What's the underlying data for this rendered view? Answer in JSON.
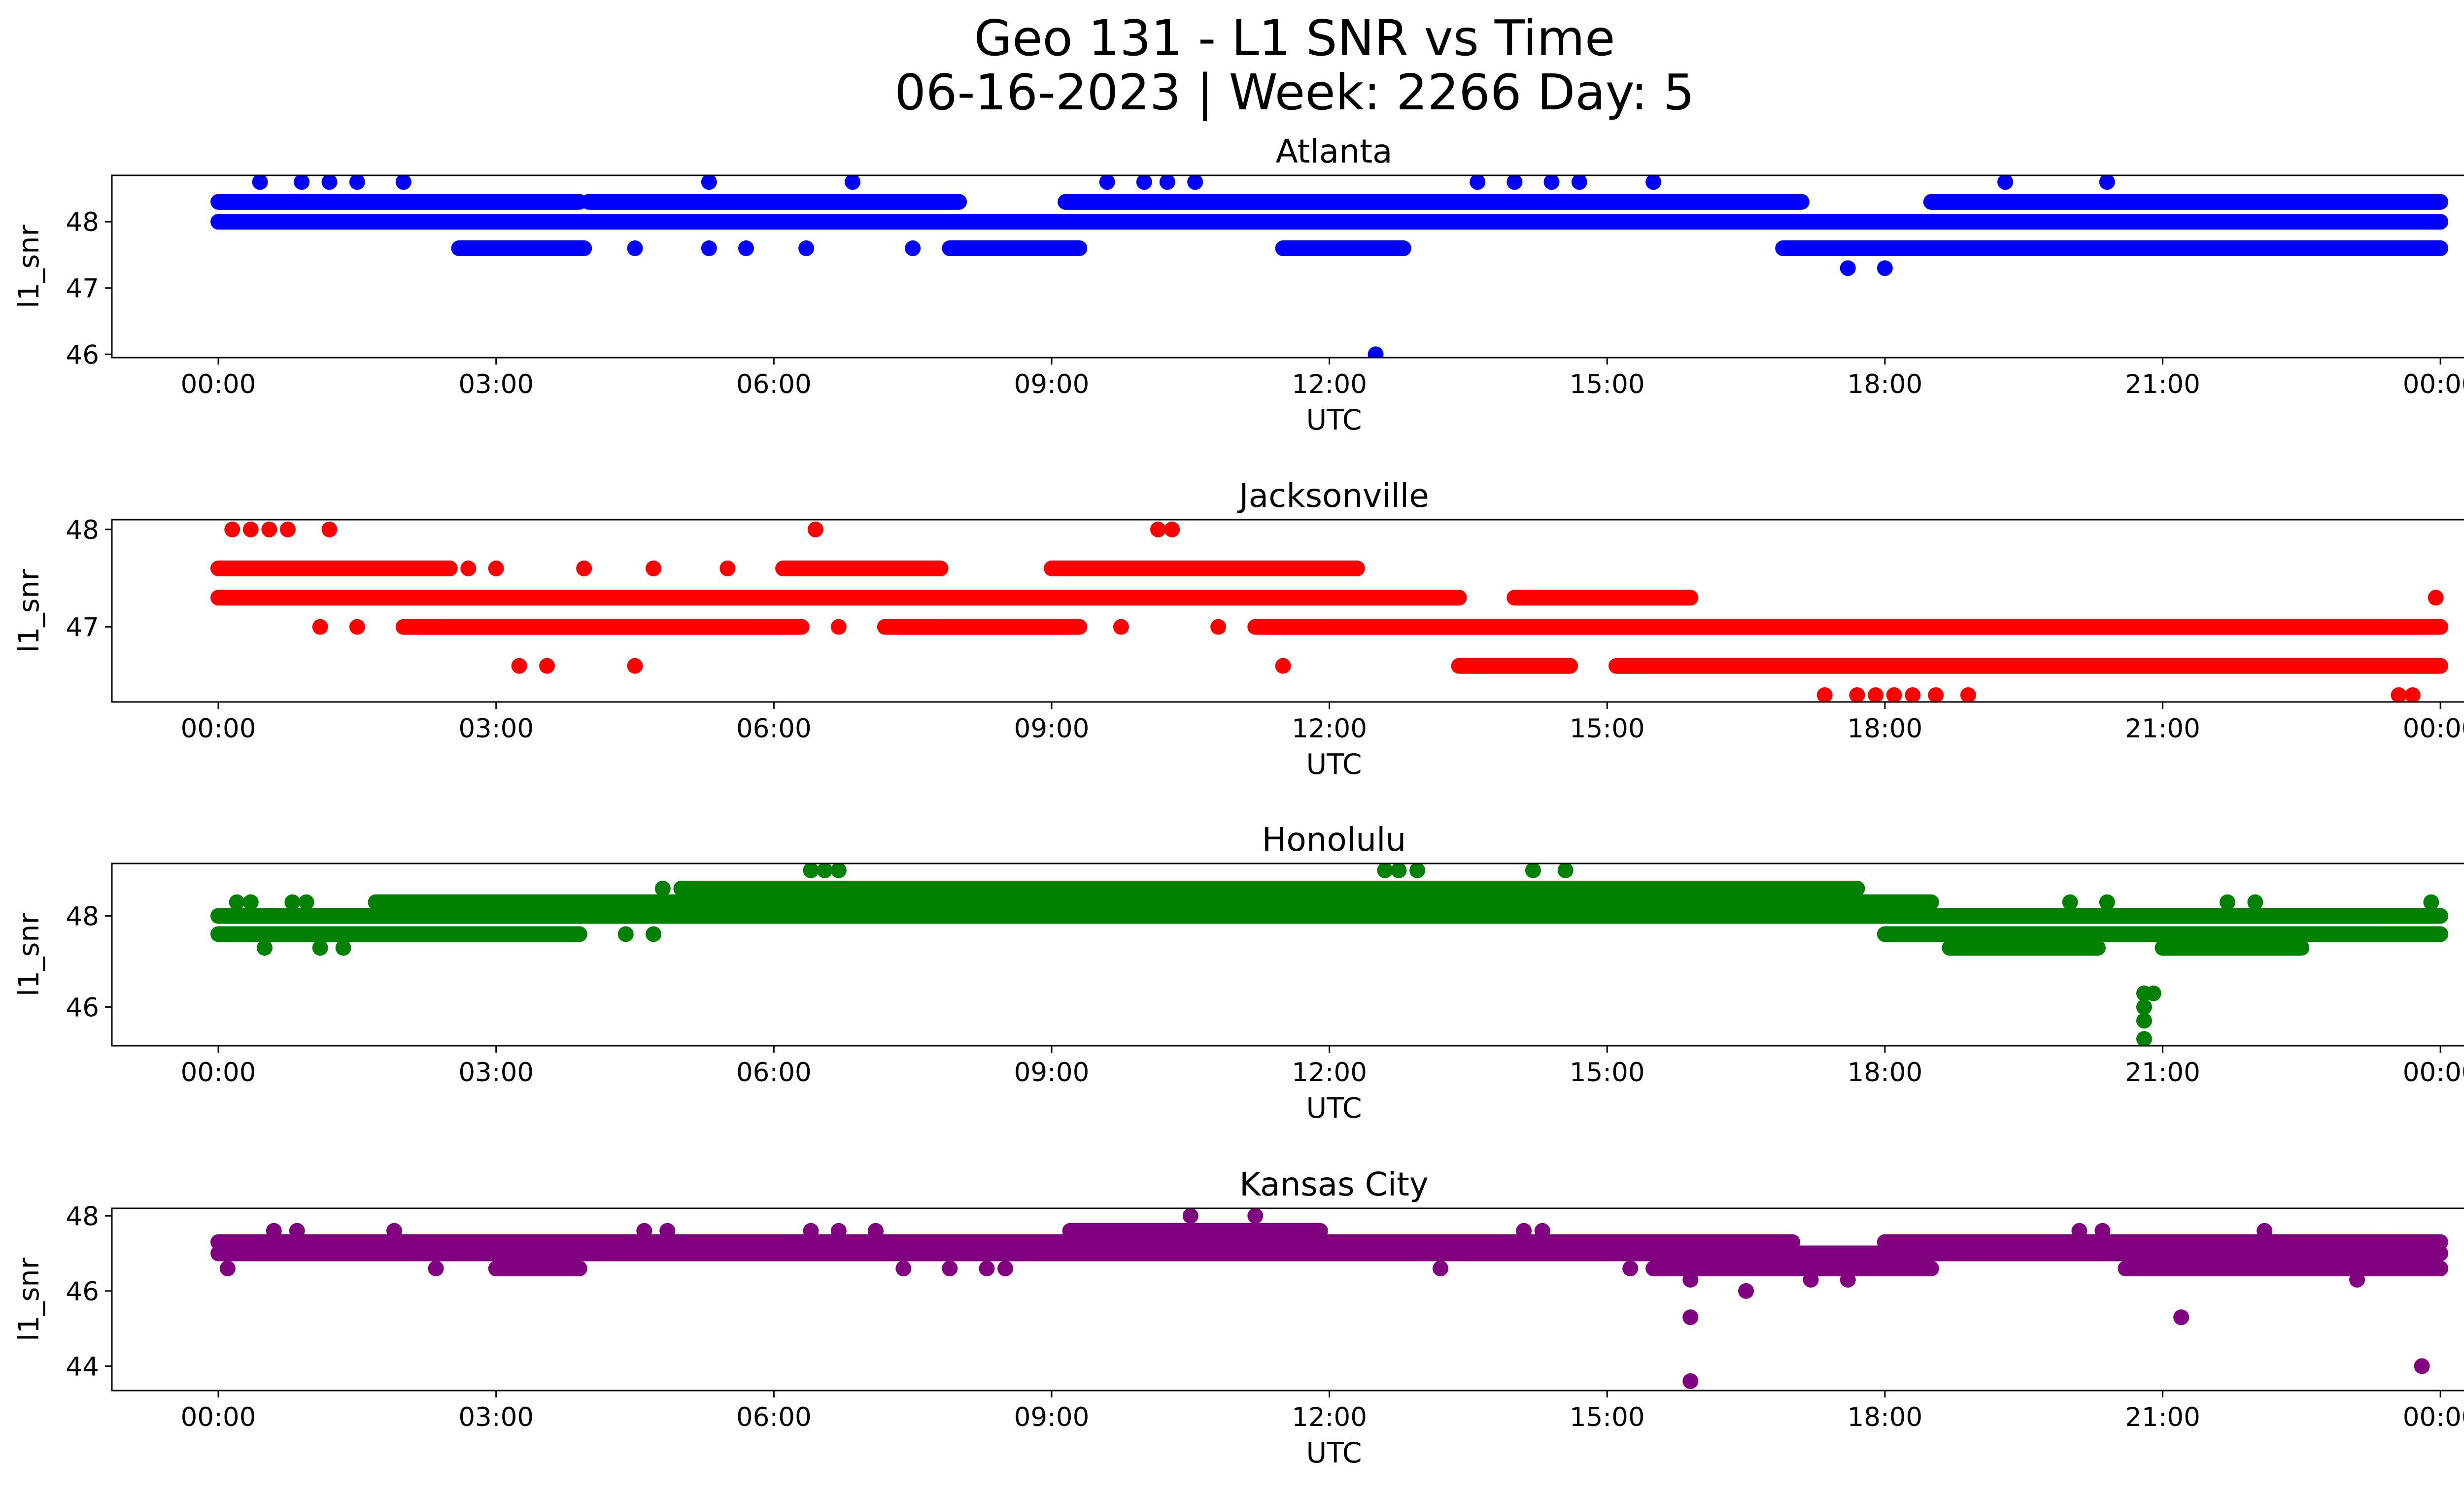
{
  "figure": {
    "title_line1": "Geo 131 - L1 SNR vs Time",
    "title_line2": "06-16-2023 | Week: 2266 Day: 5"
  },
  "chart_data": [
    {
      "type": "scatter",
      "title": "Atlanta",
      "xlabel": "UTC",
      "ylabel": "l1_snr",
      "color": "#0000ff",
      "x_unit": "hours UTC",
      "xlim": [
        -1.15,
        25.25
      ],
      "ylim": [
        45.95,
        48.7
      ],
      "x_ticks": [
        0,
        3,
        6,
        9,
        12,
        15,
        18,
        21,
        24
      ],
      "x_tick_labels": [
        "00:00",
        "03:00",
        "06:00",
        "09:00",
        "12:00",
        "15:00",
        "18:00",
        "21:00",
        "00:00"
      ],
      "y_ticks": [
        46,
        47,
        48
      ],
      "y_tick_labels": [
        "46",
        "47",
        "48"
      ],
      "bands": [
        {
          "y": 48.3,
          "ranges": [
            [
              0,
              3.9
            ],
            [
              4.0,
              8.0
            ],
            [
              9.15,
              17.1
            ],
            [
              18.5,
              24
            ]
          ]
        },
        {
          "y": 48.0,
          "ranges": [
            [
              0,
              24
            ]
          ]
        },
        {
          "y": 47.6,
          "ranges": [
            [
              2.6,
              3.95
            ],
            [
              7.9,
              9.3
            ],
            [
              11.5,
              12.8
            ],
            [
              16.9,
              24
            ]
          ]
        }
      ],
      "points": [
        {
          "x": 0.45,
          "y": 48.6
        },
        {
          "x": 0.9,
          "y": 48.6
        },
        {
          "x": 1.2,
          "y": 48.6
        },
        {
          "x": 1.5,
          "y": 48.6
        },
        {
          "x": 2.0,
          "y": 48.6
        },
        {
          "x": 5.3,
          "y": 48.6
        },
        {
          "x": 6.85,
          "y": 48.6
        },
        {
          "x": 9.6,
          "y": 48.6
        },
        {
          "x": 10.0,
          "y": 48.6
        },
        {
          "x": 10.25,
          "y": 48.6
        },
        {
          "x": 10.55,
          "y": 48.6
        },
        {
          "x": 13.6,
          "y": 48.6
        },
        {
          "x": 14.0,
          "y": 48.6
        },
        {
          "x": 14.4,
          "y": 48.6
        },
        {
          "x": 14.7,
          "y": 48.6
        },
        {
          "x": 15.5,
          "y": 48.6
        },
        {
          "x": 19.3,
          "y": 48.6
        },
        {
          "x": 20.4,
          "y": 48.6
        },
        {
          "x": 4.5,
          "y": 47.6
        },
        {
          "x": 5.3,
          "y": 47.6
        },
        {
          "x": 5.7,
          "y": 47.6
        },
        {
          "x": 6.35,
          "y": 47.6
        },
        {
          "x": 7.5,
          "y": 47.6
        },
        {
          "x": 17.6,
          "y": 47.3
        },
        {
          "x": 18.0,
          "y": 47.3
        },
        {
          "x": 12.5,
          "y": 46.0
        }
      ]
    },
    {
      "type": "scatter",
      "title": "Jacksonville",
      "xlabel": "UTC",
      "ylabel": "l1_snr",
      "color": "#ff0000",
      "x_unit": "hours UTC",
      "xlim": [
        -1.15,
        25.25
      ],
      "ylim": [
        46.23,
        48.1
      ],
      "x_ticks": [
        0,
        3,
        6,
        9,
        12,
        15,
        18,
        21,
        24
      ],
      "x_tick_labels": [
        "00:00",
        "03:00",
        "06:00",
        "09:00",
        "12:00",
        "15:00",
        "18:00",
        "21:00",
        "00:00"
      ],
      "y_ticks": [
        47,
        48
      ],
      "y_tick_labels": [
        "47",
        "48"
      ],
      "bands": [
        {
          "y": 47.6,
          "ranges": [
            [
              0,
              2.5
            ],
            [
              6.1,
              7.8
            ],
            [
              9.0,
              12.3
            ]
          ]
        },
        {
          "y": 47.3,
          "ranges": [
            [
              0,
              13.4
            ],
            [
              14.0,
              15.9
            ]
          ]
        },
        {
          "y": 47.0,
          "ranges": [
            [
              2.0,
              6.3
            ],
            [
              7.2,
              9.3
            ],
            [
              11.2,
              24
            ]
          ]
        },
        {
          "y": 46.6,
          "ranges": [
            [
              13.4,
              14.6
            ],
            [
              15.1,
              24
            ]
          ]
        }
      ],
      "points": [
        {
          "x": 0.15,
          "y": 48.0
        },
        {
          "x": 0.35,
          "y": 48.0
        },
        {
          "x": 0.55,
          "y": 48.0
        },
        {
          "x": 0.75,
          "y": 48.0
        },
        {
          "x": 1.2,
          "y": 48.0
        },
        {
          "x": 6.45,
          "y": 48.0
        },
        {
          "x": 10.15,
          "y": 48.0
        },
        {
          "x": 10.3,
          "y": 48.0
        },
        {
          "x": 2.7,
          "y": 47.6
        },
        {
          "x": 3.0,
          "y": 47.6
        },
        {
          "x": 3.95,
          "y": 47.6
        },
        {
          "x": 4.7,
          "y": 47.6
        },
        {
          "x": 5.5,
          "y": 47.6
        },
        {
          "x": 1.1,
          "y": 47.0
        },
        {
          "x": 1.5,
          "y": 47.0
        },
        {
          "x": 6.7,
          "y": 47.0
        },
        {
          "x": 9.75,
          "y": 47.0
        },
        {
          "x": 10.8,
          "y": 47.0
        },
        {
          "x": 3.25,
          "y": 46.6
        },
        {
          "x": 3.55,
          "y": 46.6
        },
        {
          "x": 4.5,
          "y": 46.6
        },
        {
          "x": 11.5,
          "y": 46.6
        },
        {
          "x": 17.35,
          "y": 46.3
        },
        {
          "x": 17.7,
          "y": 46.3
        },
        {
          "x": 17.9,
          "y": 46.3
        },
        {
          "x": 18.1,
          "y": 46.3
        },
        {
          "x": 18.3,
          "y": 46.3
        },
        {
          "x": 18.55,
          "y": 46.3
        },
        {
          "x": 18.9,
          "y": 46.3
        },
        {
          "x": 23.55,
          "y": 46.3
        },
        {
          "x": 23.7,
          "y": 46.3
        },
        {
          "x": 23.95,
          "y": 47.3
        }
      ]
    },
    {
      "type": "scatter",
      "title": "Honolulu",
      "xlabel": "UTC",
      "ylabel": "l1_snr",
      "color": "#008000",
      "x_unit": "hours UTC",
      "xlim": [
        -1.15,
        25.25
      ],
      "ylim": [
        45.15,
        49.15
      ],
      "x_ticks": [
        0,
        3,
        6,
        9,
        12,
        15,
        18,
        21,
        24
      ],
      "x_tick_labels": [
        "00:00",
        "03:00",
        "06:00",
        "09:00",
        "12:00",
        "15:00",
        "18:00",
        "21:00",
        "00:00"
      ],
      "y_ticks": [
        46,
        48
      ],
      "y_tick_labels": [
        "46",
        "48"
      ],
      "bands": [
        {
          "y": 48.6,
          "ranges": [
            [
              5.0,
              17.7
            ]
          ]
        },
        {
          "y": 48.3,
          "ranges": [
            [
              1.7,
              3.8
            ],
            [
              3.8,
              18.5
            ]
          ]
        },
        {
          "y": 48.0,
          "ranges": [
            [
              0,
              24
            ]
          ]
        },
        {
          "y": 47.6,
          "ranges": [
            [
              0,
              3.9
            ],
            [
              18.0,
              24
            ]
          ]
        },
        {
          "y": 47.3,
          "ranges": [
            [
              18.7,
              20.3
            ],
            [
              21.0,
              22.5
            ]
          ]
        }
      ],
      "points": [
        {
          "x": 0.2,
          "y": 48.3
        },
        {
          "x": 0.35,
          "y": 48.3
        },
        {
          "x": 0.8,
          "y": 48.3
        },
        {
          "x": 0.95,
          "y": 48.3
        },
        {
          "x": 0.5,
          "y": 47.3
        },
        {
          "x": 1.1,
          "y": 47.3
        },
        {
          "x": 1.35,
          "y": 47.3
        },
        {
          "x": 4.4,
          "y": 47.6
        },
        {
          "x": 4.7,
          "y": 47.6
        },
        {
          "x": 4.8,
          "y": 48.6
        },
        {
          "x": 6.4,
          "y": 49.0
        },
        {
          "x": 6.55,
          "y": 49.0
        },
        {
          "x": 6.7,
          "y": 49.0
        },
        {
          "x": 12.6,
          "y": 49.0
        },
        {
          "x": 12.75,
          "y": 49.0
        },
        {
          "x": 12.95,
          "y": 49.0
        },
        {
          "x": 14.2,
          "y": 49.0
        },
        {
          "x": 14.55,
          "y": 49.0
        },
        {
          "x": 20.0,
          "y": 48.3
        },
        {
          "x": 20.4,
          "y": 48.3
        },
        {
          "x": 21.7,
          "y": 48.3
        },
        {
          "x": 22.0,
          "y": 48.3
        },
        {
          "x": 20.8,
          "y": 46.3
        },
        {
          "x": 20.8,
          "y": 46.0
        },
        {
          "x": 20.8,
          "y": 45.7
        },
        {
          "x": 20.8,
          "y": 45.3
        },
        {
          "x": 20.9,
          "y": 46.3
        },
        {
          "x": 23.9,
          "y": 48.3
        }
      ]
    },
    {
      "type": "scatter",
      "title": "Kansas City",
      "xlabel": "UTC",
      "ylabel": "l1_snr",
      "color": "#800080",
      "x_unit": "hours UTC",
      "xlim": [
        -1.15,
        25.25
      ],
      "ylim": [
        43.35,
        48.2
      ],
      "x_ticks": [
        0,
        3,
        6,
        9,
        12,
        15,
        18,
        21,
        24
      ],
      "x_tick_labels": [
        "00:00",
        "03:00",
        "06:00",
        "09:00",
        "12:00",
        "15:00",
        "18:00",
        "21:00",
        "00:00"
      ],
      "y_ticks": [
        44,
        46,
        48
      ],
      "y_tick_labels": [
        "44",
        "46",
        "48"
      ],
      "bands": [
        {
          "y": 47.6,
          "ranges": [
            [
              9.2,
              11.9
            ]
          ]
        },
        {
          "y": 47.3,
          "ranges": [
            [
              0,
              17.0
            ],
            [
              18.0,
              24
            ]
          ]
        },
        {
          "y": 47.0,
          "ranges": [
            [
              0,
              24
            ]
          ]
        },
        {
          "y": 46.6,
          "ranges": [
            [
              3.0,
              3.9
            ],
            [
              15.5,
              18.5
            ],
            [
              20.6,
              24
            ]
          ]
        }
      ],
      "points": [
        {
          "x": 0.1,
          "y": 46.6
        },
        {
          "x": 0.6,
          "y": 47.6
        },
        {
          "x": 0.85,
          "y": 47.6
        },
        {
          "x": 1.9,
          "y": 47.6
        },
        {
          "x": 2.35,
          "y": 46.6
        },
        {
          "x": 4.6,
          "y": 47.6
        },
        {
          "x": 4.85,
          "y": 47.6
        },
        {
          "x": 6.4,
          "y": 47.6
        },
        {
          "x": 6.7,
          "y": 47.6
        },
        {
          "x": 7.1,
          "y": 47.6
        },
        {
          "x": 7.4,
          "y": 46.6
        },
        {
          "x": 7.9,
          "y": 46.6
        },
        {
          "x": 8.3,
          "y": 46.6
        },
        {
          "x": 8.5,
          "y": 46.6
        },
        {
          "x": 10.5,
          "y": 48.0
        },
        {
          "x": 11.2,
          "y": 48.0
        },
        {
          "x": 13.2,
          "y": 46.6
        },
        {
          "x": 14.1,
          "y": 47.6
        },
        {
          "x": 14.3,
          "y": 47.6
        },
        {
          "x": 15.25,
          "y": 46.6
        },
        {
          "x": 15.6,
          "y": 46.6
        },
        {
          "x": 15.9,
          "y": 46.3
        },
        {
          "x": 15.9,
          "y": 45.3
        },
        {
          "x": 15.9,
          "y": 43.6
        },
        {
          "x": 16.5,
          "y": 46.0
        },
        {
          "x": 17.2,
          "y": 46.3
        },
        {
          "x": 17.6,
          "y": 46.3
        },
        {
          "x": 20.1,
          "y": 47.6
        },
        {
          "x": 20.35,
          "y": 47.6
        },
        {
          "x": 21.2,
          "y": 45.3
        },
        {
          "x": 21.6,
          "y": 46.6
        },
        {
          "x": 22.1,
          "y": 47.6
        },
        {
          "x": 23.1,
          "y": 46.3
        },
        {
          "x": 23.4,
          "y": 47.3
        },
        {
          "x": 23.8,
          "y": 44.0
        }
      ]
    }
  ]
}
